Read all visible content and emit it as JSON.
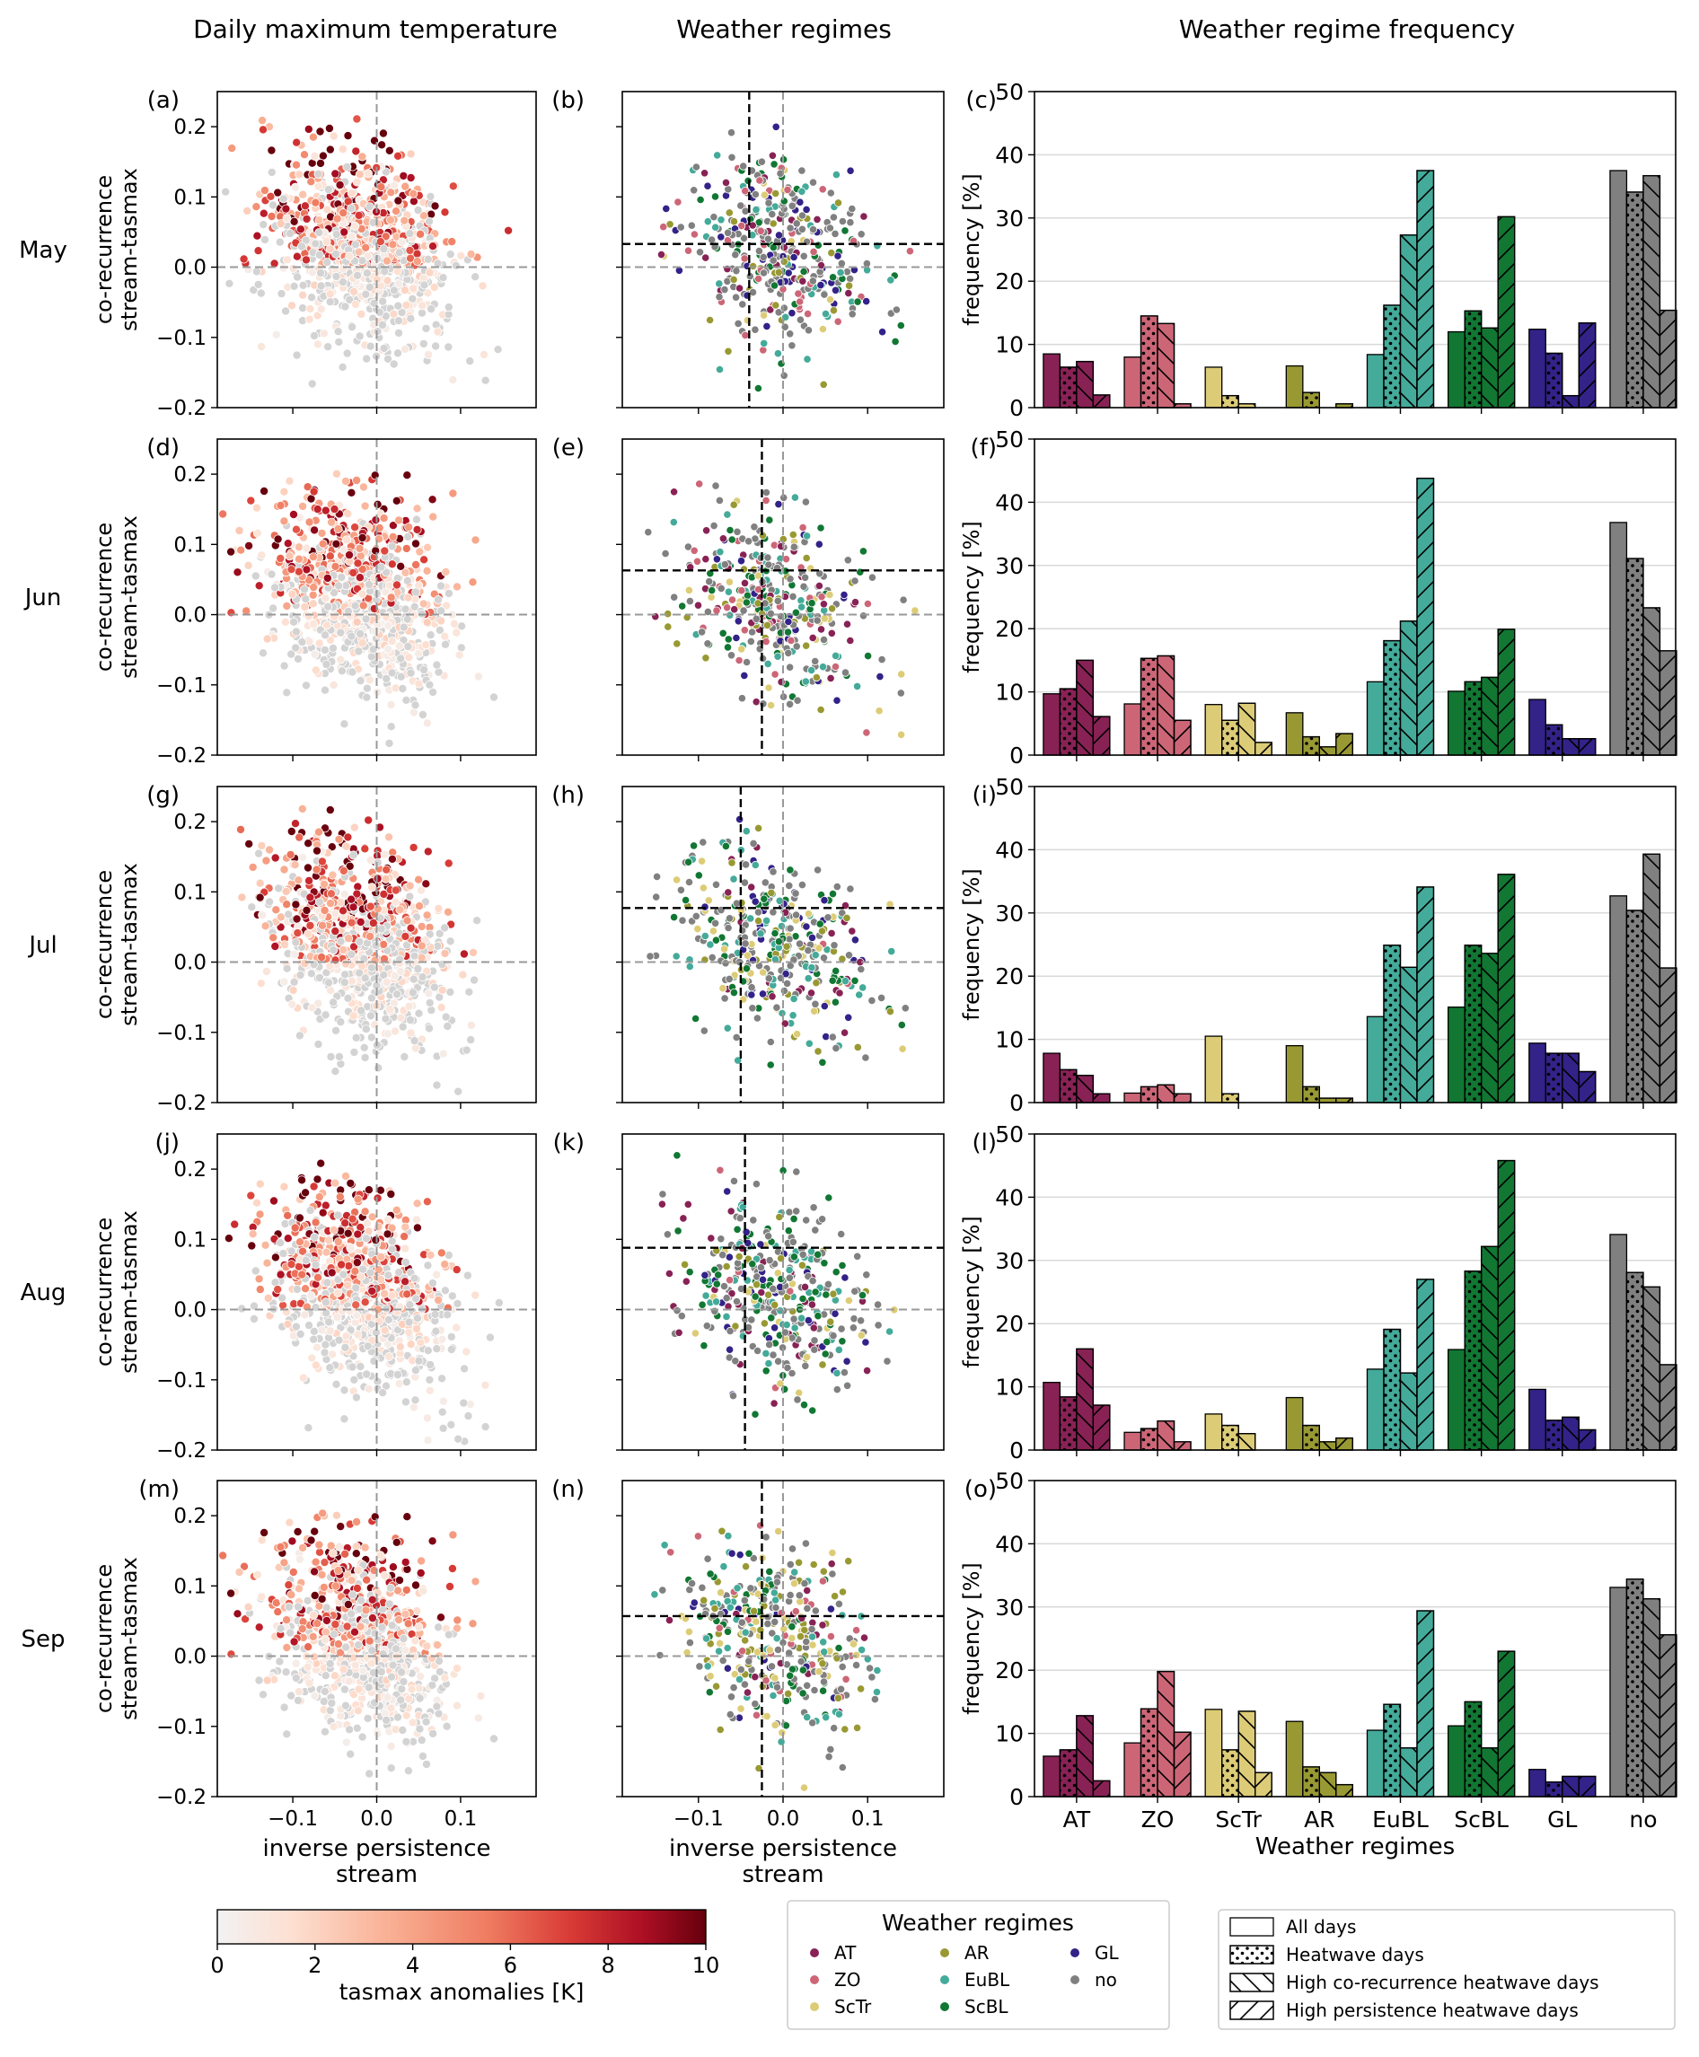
{
  "column_titles": [
    "Daily maximum temperature",
    "Weather regimes",
    "Weather regime frequency"
  ],
  "row_labels": [
    "May",
    "Jun",
    "Jul",
    "Aug",
    "Sep"
  ],
  "panel_labels": [
    [
      "(a)",
      "(b)",
      "(c)"
    ],
    [
      "(d)",
      "(e)",
      "(f)"
    ],
    [
      "(g)",
      "(h)",
      "(i)"
    ],
    [
      "(j)",
      "(k)",
      "(l)"
    ],
    [
      "(m)",
      "(n)",
      "(o)"
    ]
  ],
  "chart_data": [
    {
      "type": "scatter",
      "column": "Daily maximum temperature",
      "xlabel": "inverse persistence\nstream",
      "ylabel": "co-recurrence\nstream-tasmax",
      "xlim": [
        -0.19,
        0.19
      ],
      "ylim": [
        -0.2,
        0.25
      ],
      "xticks": [
        -0.1,
        0.0,
        0.1
      ],
      "xtick_labels": [
        "−0.1",
        "0.0",
        "0.1"
      ],
      "yticks": [
        -0.2,
        -0.1,
        0.0,
        0.1,
        0.2
      ],
      "ytick_labels": [
        "−0.2",
        "−0.1",
        "0.0",
        "0.1",
        "0.2"
      ],
      "reference_lines": {
        "x": 0.0,
        "y": 0.0,
        "color": "#999999"
      },
      "color_by": "tasmax anomalies [K]",
      "colormap": "Reds",
      "grey_color": "#d3d3d3",
      "colorbar": {
        "label": "tasmax anomalies [K]",
        "range": [
          0,
          10
        ],
        "ticks": [
          "0",
          "2",
          "4",
          "6",
          "8",
          "10"
        ]
      }
    },
    {
      "type": "scatter",
      "column": "Weather regimes",
      "xlabel": "inverse persistence\nstream",
      "xlim": [
        -0.19,
        0.19
      ],
      "ylim": [
        -0.2,
        0.25
      ],
      "xticks": [
        -0.1,
        0.0,
        0.1
      ],
      "xtick_labels": [
        "−0.1",
        "0.0",
        "0.1"
      ],
      "yticks": [
        -0.2,
        -0.1,
        0.0,
        0.1,
        0.2
      ],
      "reference_lines": {
        "x": 0.0,
        "y": 0.0,
        "color": "#999999"
      },
      "threshold_lines": [
        {
          "month": "May",
          "x": -0.04,
          "y": 0.033
        },
        {
          "month": "Jun",
          "x": -0.025,
          "y": 0.063
        },
        {
          "month": "Jul",
          "x": -0.05,
          "y": 0.077
        },
        {
          "month": "Aug",
          "x": -0.045,
          "y": 0.088
        },
        {
          "month": "Sep",
          "x": -0.025,
          "y": 0.057
        }
      ],
      "legend": {
        "title": "Weather regimes",
        "placement": "bottom-center",
        "items": [
          {
            "label": "AT",
            "color": "#882255"
          },
          {
            "label": "ZO",
            "color": "#CC6677"
          },
          {
            "label": "ScTr",
            "color": "#DDCC77"
          },
          {
            "label": "AR",
            "color": "#999933"
          },
          {
            "label": "EuBL",
            "color": "#44AA99"
          },
          {
            "label": "ScBL",
            "color": "#117733"
          },
          {
            "label": "GL",
            "color": "#332288"
          },
          {
            "label": "no",
            "color": "#808080"
          }
        ]
      }
    },
    {
      "type": "bar",
      "column": "Weather regime frequency",
      "xlabel": "Weather regimes",
      "ylabel": "frequency [%]",
      "ylim": [
        0,
        50
      ],
      "yticks": [
        "0",
        "10",
        "20",
        "30",
        "40",
        "50"
      ],
      "grid": "horizontal",
      "categories": [
        "AT",
        "ZO",
        "ScTr",
        "AR",
        "EuBL",
        "ScBL",
        "GL",
        "no"
      ],
      "category_colors": [
        "#882255",
        "#CC6677",
        "#DDCC77",
        "#999933",
        "#44AA99",
        "#117733",
        "#332288",
        "#808080"
      ],
      "series": [
        {
          "name": "All days",
          "hatch": "none"
        },
        {
          "name": "Heatwave days",
          "hatch": "dots"
        },
        {
          "name": "High co-recurrence heatwave days",
          "hatch": "backslash"
        },
        {
          "name": "High persistence heatwave days",
          "hatch": "slash"
        }
      ],
      "legend_placement": "bottom-right",
      "panels": [
        {
          "month": "May",
          "values": [
            [
              8.5,
              6.4,
              7.3,
              2.0
            ],
            [
              8.0,
              14.5,
              13.3,
              0.6
            ],
            [
              6.4,
              1.9,
              0.6,
              0.0
            ],
            [
              6.6,
              2.4,
              0.0,
              0.6
            ],
            [
              8.4,
              16.2,
              27.3,
              37.5
            ],
            [
              12.0,
              15.3,
              12.6,
              30.2
            ],
            [
              12.4,
              8.6,
              1.9,
              13.4
            ],
            [
              37.5,
              34.1,
              36.7,
              15.4
            ]
          ]
        },
        {
          "month": "Jun",
          "values": [
            [
              9.7,
              10.5,
              15.0,
              6.1
            ],
            [
              8.1,
              15.3,
              15.7,
              5.5
            ],
            [
              8.0,
              5.5,
              8.2,
              2.0
            ],
            [
              6.7,
              2.9,
              1.3,
              3.4
            ],
            [
              11.6,
              18.1,
              21.2,
              43.8
            ],
            [
              10.1,
              11.6,
              12.3,
              19.9
            ],
            [
              8.8,
              4.8,
              2.6,
              2.6
            ],
            [
              36.8,
              31.1,
              23.3,
              16.5
            ]
          ]
        },
        {
          "month": "Jul",
          "values": [
            [
              7.8,
              5.2,
              4.3,
              1.4
            ],
            [
              1.5,
              2.5,
              2.8,
              1.4
            ],
            [
              10.5,
              1.4,
              0.0,
              0.0
            ],
            [
              9.0,
              2.5,
              0.7,
              0.7
            ],
            [
              13.6,
              24.9,
              21.4,
              34.1
            ],
            [
              15.1,
              24.9,
              23.6,
              36.1
            ],
            [
              9.4,
              7.8,
              7.8,
              4.9
            ],
            [
              32.7,
              30.4,
              39.3,
              21.3
            ]
          ]
        },
        {
          "month": "Aug",
          "values": [
            [
              10.7,
              8.4,
              16.0,
              7.1
            ],
            [
              2.8,
              3.4,
              4.6,
              1.3
            ],
            [
              5.7,
              3.9,
              2.6,
              0.0
            ],
            [
              8.3,
              3.9,
              1.3,
              1.9
            ],
            [
              12.8,
              19.1,
              12.2,
              27.0
            ],
            [
              15.9,
              28.3,
              32.2,
              45.8
            ],
            [
              9.6,
              4.7,
              5.2,
              3.2
            ],
            [
              34.1,
              28.1,
              25.8,
              13.5
            ]
          ]
        },
        {
          "month": "Sep",
          "values": [
            [
              6.4,
              7.4,
              12.8,
              2.5
            ],
            [
              8.5,
              13.9,
              19.8,
              10.2
            ],
            [
              13.8,
              7.4,
              13.5,
              3.8
            ],
            [
              11.9,
              4.7,
              3.8,
              1.9
            ],
            [
              10.5,
              14.6,
              7.7,
              29.4
            ],
            [
              11.2,
              15.0,
              7.7,
              23.0
            ],
            [
              4.3,
              2.3,
              3.2,
              3.2
            ],
            [
              33.1,
              34.4,
              31.3,
              25.6
            ]
          ]
        }
      ]
    }
  ]
}
